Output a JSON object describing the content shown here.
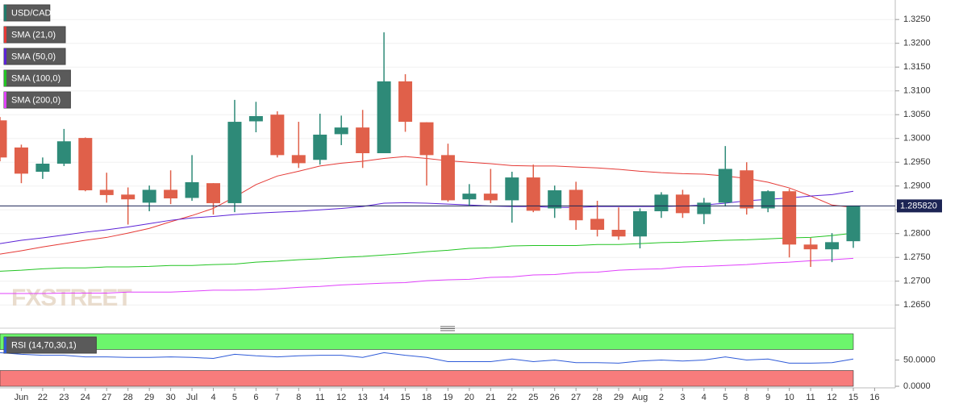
{
  "chart_data": [
    {
      "type": "candlestick",
      "title": "USD/CAD",
      "watermark": "FXSTREET",
      "grid": true,
      "up_color": "#2e8a78",
      "down_color": "#e0604a",
      "categories": [
        null,
        "Jun",
        "22",
        "23",
        "24",
        "27",
        "28",
        "29",
        "30",
        "Jul",
        "4",
        "5",
        "6",
        "7",
        "8",
        "11",
        "12",
        "13",
        "14",
        "15",
        "18",
        "19",
        "20",
        "21",
        "22",
        "25",
        "26",
        "27",
        "28",
        "29",
        "Aug",
        "2",
        "3",
        "4",
        "5",
        "8",
        "9",
        "10",
        "11",
        "12",
        "15",
        "16"
      ],
      "open": [
        1.3038,
        1.2981,
        1.293,
        1.2947,
        1.3001,
        1.2892,
        1.2882,
        1.2865,
        1.2892,
        1.2875,
        1.2906,
        1.2864,
        1.3036,
        1.305,
        1.2965,
        1.2955,
        1.3009,
        1.3023,
        1.2969,
        1.312,
        1.3034,
        1.2965,
        1.2872,
        1.2884,
        1.287,
        1.2918,
        1.2853,
        1.2892,
        1.2831,
        1.2808,
        1.2794,
        1.2847,
        1.2882,
        1.2841,
        1.2865,
        1.2933,
        1.2853,
        1.2889,
        1.2777,
        1.2767,
        1.2784,
        null
      ],
      "high": [
        1.3045,
        1.2987,
        1.296,
        1.302,
        1.3002,
        1.2928,
        1.2897,
        1.2901,
        1.2933,
        1.2965,
        1.2906,
        1.3081,
        1.3077,
        1.3057,
        1.3035,
        1.3052,
        1.3048,
        1.306,
        1.3223,
        1.3135,
        1.3034,
        1.2989,
        1.2904,
        1.2936,
        1.293,
        1.2945,
        1.2901,
        1.2909,
        1.2869,
        1.2855,
        1.2853,
        1.2887,
        1.2892,
        1.2875,
        1.2984,
        1.295,
        1.2891,
        1.2894,
        1.2791,
        1.2801,
        1.2858,
        null
      ],
      "low": [
        1.2952,
        1.2906,
        1.2915,
        1.2942,
        1.2889,
        1.2865,
        1.2819,
        1.2847,
        1.2862,
        1.2869,
        1.284,
        1.2845,
        1.3013,
        1.296,
        1.2938,
        1.2945,
        1.2986,
        1.2938,
        1.2969,
        1.3014,
        1.2901,
        1.2867,
        1.2858,
        1.2864,
        1.2823,
        1.2845,
        1.2833,
        1.2808,
        1.2794,
        1.2787,
        1.2769,
        1.2833,
        1.2833,
        1.282,
        1.2857,
        1.284,
        1.2845,
        1.275,
        1.273,
        1.274,
        1.277,
        null
      ],
      "close": [
        1.296,
        1.2926,
        1.2947,
        1.2994,
        1.2891,
        1.2881,
        1.2872,
        1.2892,
        1.2874,
        1.2908,
        1.2864,
        1.3035,
        1.3047,
        1.2965,
        1.2948,
        1.3008,
        1.3023,
        1.2969,
        1.312,
        1.3035,
        1.2965,
        1.287,
        1.2884,
        1.287,
        1.2918,
        1.2848,
        1.2891,
        1.2828,
        1.2808,
        1.2794,
        1.2847,
        1.2882,
        1.2843,
        1.2865,
        1.2936,
        1.2853,
        1.2889,
        1.2777,
        1.2767,
        1.2782,
        1.2858,
        null
      ],
      "overlays": [
        {
          "name": "SMA (21,0)",
          "color": "#e53935",
          "values": [
            1.2757,
            1.2764,
            1.2772,
            1.2779,
            1.2786,
            1.2792,
            1.2801,
            1.2811,
            1.2825,
            1.2838,
            1.2853,
            1.2877,
            1.2903,
            1.2921,
            1.2931,
            1.2942,
            1.2948,
            1.2952,
            1.2958,
            1.2962,
            1.2958,
            1.2953,
            1.295,
            1.2947,
            1.2943,
            1.2942,
            1.2942,
            1.294,
            1.2938,
            1.2935,
            1.2931,
            1.2928,
            1.2926,
            1.2925,
            1.2921,
            1.2916,
            1.2908,
            1.2896,
            1.2879,
            1.286,
            1.2855,
            null
          ]
        },
        {
          "name": "SMA (50,0)",
          "color": "#5b22d6",
          "values": [
            1.2779,
            1.2786,
            1.2791,
            1.2797,
            1.2803,
            1.2808,
            1.2814,
            1.2821,
            1.2828,
            1.2833,
            1.2836,
            1.284,
            1.2843,
            1.2845,
            1.2847,
            1.285,
            1.2853,
            1.2857,
            1.2864,
            1.2865,
            1.2864,
            1.2862,
            1.286,
            1.2858,
            1.2857,
            1.2857,
            1.2855,
            1.2855,
            1.2857,
            1.2857,
            1.2857,
            1.2857,
            1.2858,
            1.286,
            1.2864,
            1.2869,
            1.2872,
            1.2875,
            1.2879,
            1.2882,
            1.2889,
            null
          ]
        },
        {
          "name": "SMA (100,0)",
          "color": "#22c422",
          "values": [
            1.2721,
            1.2723,
            1.2726,
            1.2728,
            1.2728,
            1.273,
            1.273,
            1.2731,
            1.2733,
            1.2733,
            1.2735,
            1.2736,
            1.274,
            1.2742,
            1.2745,
            1.2747,
            1.275,
            1.2752,
            1.2755,
            1.2758,
            1.2762,
            1.2765,
            1.2769,
            1.277,
            1.2774,
            1.2775,
            1.2775,
            1.2775,
            1.2777,
            1.2777,
            1.2779,
            1.2781,
            1.2782,
            1.2784,
            1.2786,
            1.2787,
            1.2789,
            1.2791,
            1.2792,
            1.2796,
            1.2801,
            null
          ]
        },
        {
          "name": "SMA (200,0)",
          "color": "#e040fb",
          "values": [
            1.2674,
            1.2674,
            1.2674,
            1.2675,
            1.2675,
            1.2675,
            1.2677,
            1.2677,
            1.2677,
            1.2679,
            1.2681,
            1.2681,
            1.2682,
            1.2684,
            1.2687,
            1.2689,
            1.2692,
            1.2694,
            1.2696,
            1.2697,
            1.2701,
            1.2703,
            1.2704,
            1.2708,
            1.2709,
            1.2713,
            1.2714,
            1.2718,
            1.2719,
            1.2723,
            1.2725,
            1.2726,
            1.273,
            1.2731,
            1.2733,
            1.2735,
            1.2738,
            1.274,
            1.2743,
            1.2745,
            1.2748,
            null
          ]
        }
      ],
      "last_price": {
        "value": 1.28582,
        "label": "1.285820"
      },
      "ylim": [
        1.2608,
        1.3291
      ],
      "yticks": [
        {
          "value": 1.265,
          "label": "1.2650"
        },
        {
          "value": 1.27,
          "label": "1.2700"
        },
        {
          "value": 1.275,
          "label": "1.2750"
        },
        {
          "value": 1.28,
          "label": "1.2800"
        },
        {
          "value": 1.285,
          "label": "1.2850"
        },
        {
          "value": 1.29,
          "label": "1.2900"
        },
        {
          "value": 1.295,
          "label": "1.2950"
        },
        {
          "value": 1.3,
          "label": "1.3000"
        },
        {
          "value": 1.305,
          "label": "1.3050"
        },
        {
          "value": 1.31,
          "label": "1.3100"
        },
        {
          "value": 1.315,
          "label": "1.3150"
        },
        {
          "value": 1.32,
          "label": "1.3200"
        },
        {
          "value": 1.325,
          "label": "1.3250"
        }
      ]
    },
    {
      "type": "line",
      "title": "RSI (14,70,30,1)",
      "color": "#2f5bd8",
      "values": [
        64,
        61,
        59,
        59,
        56,
        56,
        55,
        55,
        56,
        55,
        53,
        61,
        58,
        56,
        58,
        59,
        59,
        55,
        64,
        59,
        55,
        47,
        47,
        47,
        52,
        47,
        50,
        45,
        45,
        44,
        48,
        50,
        48,
        50,
        56,
        50,
        52,
        44,
        44,
        45,
        52,
        null
      ],
      "bands": [
        {
          "from": 70,
          "to": 100,
          "color": "#6cf56c"
        },
        {
          "from": 0,
          "to": 30,
          "color": "#f77c7c"
        }
      ],
      "ylim": [
        -3,
        103
      ],
      "yticks": [
        {
          "value": 0,
          "label": "0.0000"
        },
        {
          "value": 50,
          "label": "50.0000"
        }
      ]
    }
  ]
}
